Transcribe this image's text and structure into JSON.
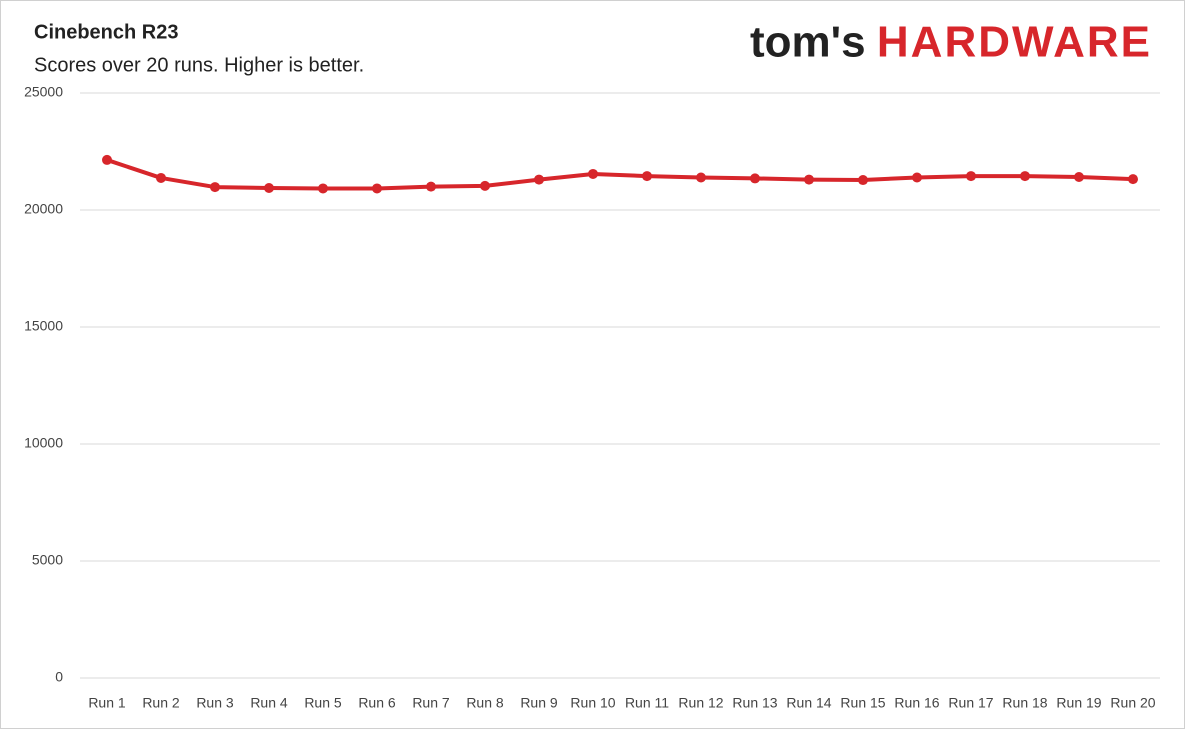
{
  "chart_data": {
    "type": "line",
    "title": "Cinebench R23",
    "subtitle": "Scores over 20 runs. Higher is better.",
    "logo": [
      "tom's",
      "HARDWARE"
    ],
    "categories": [
      "Run 1",
      "Run 2",
      "Run 3",
      "Run 4",
      "Run 5",
      "Run 6",
      "Run 7",
      "Run 8",
      "Run 9",
      "Run 10",
      "Run 11",
      "Run 12",
      "Run 13",
      "Run 14",
      "Run 15",
      "Run 16",
      "Run 17",
      "Run 18",
      "Run 19",
      "Run 20"
    ],
    "values": [
      22140,
      21370,
      20980,
      20940,
      20920,
      20920,
      21000,
      21030,
      21300,
      21540,
      21450,
      21390,
      21350,
      21300,
      21280,
      21390,
      21450,
      21450,
      21410,
      21320
    ],
    "color": "#d7262b",
    "ylim": [
      0,
      25000
    ],
    "yticks": [
      0,
      5000,
      10000,
      15000,
      20000,
      25000
    ],
    "grid": true
  }
}
